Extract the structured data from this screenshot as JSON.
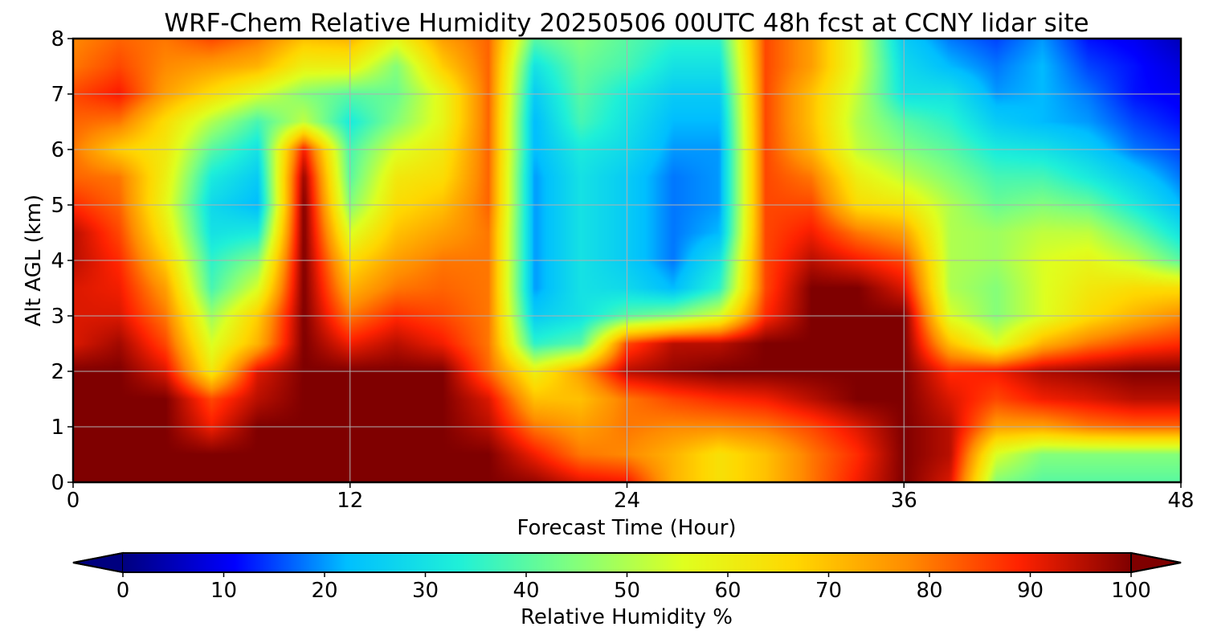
{
  "chart_data": {
    "type": "heatmap",
    "title": "WRF-Chem Relative Humidity 20250506 00UTC 48h fcst at CCNY lidar site",
    "xlabel": "Forecast Time (Hour)",
    "ylabel": "Alt AGL (km)",
    "xlim": [
      0,
      48
    ],
    "ylim": [
      0,
      8
    ],
    "x_ticks": [
      "0",
      "12",
      "24",
      "36",
      "48"
    ],
    "y_ticks": [
      "0",
      "1",
      "2",
      "3",
      "4",
      "5",
      "6",
      "7",
      "8"
    ],
    "grid": true,
    "colorbar": {
      "label": "Relative Humidity %",
      "range": [
        0,
        100
      ],
      "ticks": [
        "0",
        "10",
        "20",
        "30",
        "40",
        "50",
        "60",
        "70",
        "80",
        "90",
        "100"
      ],
      "extend": "both",
      "colormap": "jet",
      "stops": [
        "#00007f",
        "#0000ff",
        "#00bfff",
        "#1ff0d8",
        "#7fff7f",
        "#dfff1f",
        "#ffd700",
        "#ff8c00",
        "#ff2200",
        "#7f0000"
      ]
    },
    "x": [
      0,
      2,
      4,
      6,
      8,
      10,
      12,
      14,
      16,
      18,
      20,
      22,
      24,
      26,
      28,
      30,
      32,
      34,
      36,
      38,
      40,
      42,
      44,
      46,
      48
    ],
    "y": [
      0,
      0.5,
      1,
      1.5,
      2,
      2.5,
      3,
      3.5,
      4,
      4.5,
      5,
      5.5,
      6,
      6.5,
      7,
      7.5,
      8
    ],
    "z": [
      [
        100,
        100,
        100,
        100,
        100,
        100,
        100,
        100,
        100,
        100,
        98,
        92,
        90,
        72,
        64,
        70,
        80,
        90,
        100,
        92,
        45,
        40,
        40,
        40,
        40
      ],
      [
        100,
        100,
        100,
        100,
        100,
        100,
        100,
        100,
        100,
        100,
        90,
        80,
        78,
        72,
        64,
        70,
        80,
        88,
        100,
        95,
        55,
        45,
        45,
        45,
        45
      ],
      [
        100,
        100,
        100,
        90,
        100,
        100,
        100,
        100,
        100,
        95,
        80,
        75,
        80,
        78,
        78,
        80,
        85,
        92,
        100,
        95,
        75,
        75,
        80,
        82,
        82
      ],
      [
        100,
        100,
        100,
        85,
        95,
        100,
        100,
        100,
        100,
        92,
        70,
        70,
        80,
        85,
        88,
        90,
        95,
        100,
        100,
        92,
        85,
        90,
        92,
        95,
        95
      ],
      [
        100,
        100,
        92,
        62,
        92,
        100,
        100,
        100,
        100,
        82,
        60,
        75,
        95,
        98,
        100,
        100,
        100,
        100,
        100,
        88,
        90,
        96,
        98,
        100,
        100
      ],
      [
        92,
        97,
        85,
        55,
        72,
        100,
        90,
        95,
        90,
        80,
        35,
        40,
        85,
        95,
        95,
        100,
        100,
        100,
        100,
        70,
        55,
        72,
        80,
        85,
        88
      ],
      [
        92,
        92,
        80,
        48,
        68,
        100,
        80,
        88,
        85,
        80,
        25,
        30,
        40,
        45,
        55,
        88,
        100,
        100,
        100,
        55,
        45,
        55,
        65,
        72,
        78
      ],
      [
        92,
        90,
        75,
        38,
        55,
        100,
        72,
        80,
        82,
        80,
        20,
        30,
        28,
        22,
        35,
        85,
        100,
        100,
        92,
        50,
        45,
        55,
        62,
        65,
        65
      ],
      [
        95,
        88,
        68,
        35,
        45,
        100,
        65,
        75,
        80,
        80,
        20,
        30,
        25,
        18,
        30,
        85,
        95,
        90,
        85,
        50,
        48,
        55,
        58,
        52,
        40
      ],
      [
        95,
        85,
        62,
        30,
        32,
        100,
        55,
        70,
        75,
        80,
        20,
        30,
        25,
        18,
        22,
        85,
        90,
        80,
        75,
        50,
        48,
        52,
        52,
        42,
        30
      ],
      [
        88,
        82,
        58,
        28,
        22,
        100,
        45,
        65,
        70,
        82,
        20,
        30,
        25,
        18,
        20,
        85,
        85,
        65,
        62,
        50,
        42,
        45,
        42,
        32,
        22
      ],
      [
        82,
        80,
        60,
        32,
        25,
        98,
        40,
        62,
        65,
        82,
        20,
        30,
        25,
        18,
        20,
        85,
        80,
        60,
        52,
        45,
        38,
        38,
        32,
        25,
        18
      ],
      [
        80,
        68,
        62,
        40,
        30,
        90,
        38,
        55,
        62,
        82,
        22,
        32,
        28,
        20,
        20,
        85,
        72,
        52,
        45,
        40,
        32,
        30,
        25,
        18,
        15
      ],
      [
        82,
        80,
        65,
        50,
        38,
        52,
        32,
        45,
        58,
        82,
        22,
        38,
        30,
        22,
        22,
        85,
        70,
        50,
        40,
        35,
        25,
        22,
        20,
        15,
        12
      ],
      [
        85,
        90,
        75,
        65,
        55,
        45,
        40,
        42,
        58,
        82,
        25,
        40,
        32,
        25,
        25,
        85,
        70,
        52,
        30,
        30,
        20,
        22,
        18,
        12,
        10
      ],
      [
        80,
        85,
        78,
        75,
        72,
        60,
        60,
        45,
        68,
        82,
        30,
        42,
        38,
        30,
        30,
        85,
        75,
        55,
        28,
        22,
        18,
        22,
        15,
        12,
        8
      ],
      [
        78,
        82,
        80,
        85,
        80,
        70,
        72,
        58,
        75,
        82,
        40,
        45,
        40,
        35,
        35,
        85,
        75,
        55,
        25,
        18,
        15,
        20,
        12,
        10,
        5
      ]
    ]
  }
}
